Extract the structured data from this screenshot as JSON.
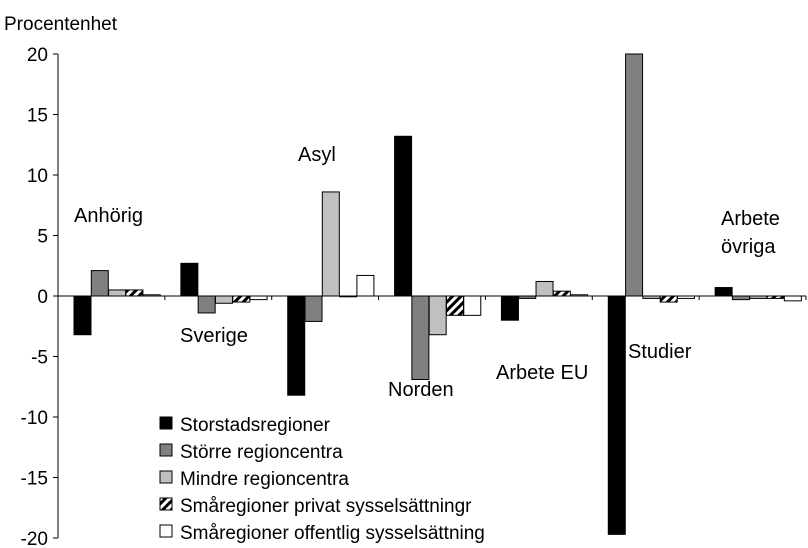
{
  "chart_data": {
    "type": "bar",
    "ylabel": "Procentenhet",
    "ylim": [
      -20,
      20
    ],
    "yticks": [
      20,
      15,
      10,
      5,
      0,
      -5,
      -10,
      -15,
      -20
    ],
    "grid": false,
    "legend_position": "bottom-left",
    "categories": [
      "Anhörig",
      "Sverige",
      "Asyl",
      "Norden",
      "Arbete EU",
      "Studier",
      "Arbete övriga"
    ],
    "category_label_lines": [
      [
        "Anhörig"
      ],
      [
        "Sverige"
      ],
      [
        "Asyl"
      ],
      [
        "Norden"
      ],
      [
        "Arbete EU"
      ],
      [
        "Studier"
      ],
      [
        "Arbete",
        "övriga"
      ]
    ],
    "series": [
      {
        "name": "Storstadsregioner",
        "values": [
          -3.2,
          2.7,
          -8.2,
          13.2,
          -2.0,
          -19.7,
          0.7
        ]
      },
      {
        "name": "Större regioncentra",
        "values": [
          2.1,
          -1.4,
          -2.1,
          -6.9,
          -0.2,
          20.5,
          -0.3
        ]
      },
      {
        "name": "Mindre regioncentra",
        "values": [
          0.5,
          -0.6,
          8.6,
          -3.2,
          1.2,
          -0.2,
          -0.2
        ]
      },
      {
        "name": "Småregioner privat sysselsättningr",
        "values": [
          0.5,
          -0.5,
          0.0,
          -1.6,
          0.4,
          -0.5,
          -0.2
        ]
      },
      {
        "name": "Småregioner offentlig sysselsättning",
        "values": [
          0.1,
          -0.3,
          1.7,
          -1.6,
          0.1,
          -0.2,
          -0.4
        ]
      }
    ],
    "series_styles": [
      {
        "fill": "#000000",
        "pattern": "solid"
      },
      {
        "fill": "#808080",
        "pattern": "solid"
      },
      {
        "fill": "#c0c0c0",
        "pattern": "solid"
      },
      {
        "fill": "#ffffff",
        "pattern": "diagonal-hatch"
      },
      {
        "fill": "#ffffff",
        "pattern": "solid"
      }
    ]
  }
}
